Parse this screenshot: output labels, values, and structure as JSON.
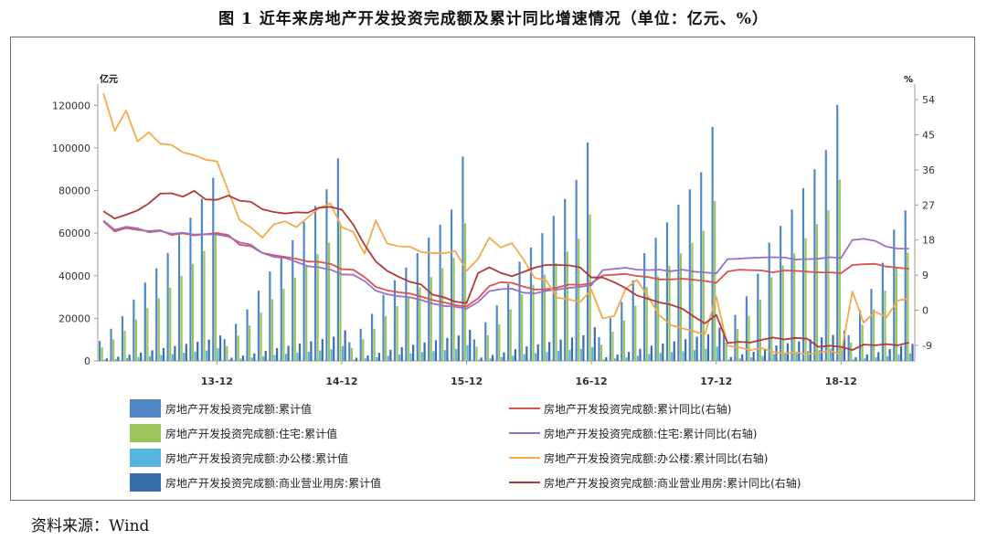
{
  "figure": {
    "title": "图 1  近年来房地产开发投资完成额及累计同比增速情况（单位：亿元、%）",
    "source": "资料来源：Wind"
  },
  "chart_data": {
    "type": "bar",
    "y_left": {
      "unit": "亿元",
      "min": 0,
      "max": 130000,
      "ticks": [
        0,
        20000,
        40000,
        60000,
        80000,
        100000,
        120000
      ]
    },
    "y_right": {
      "unit": "%",
      "min": -13,
      "max": 58,
      "ticks": [
        -9,
        0,
        9,
        18,
        27,
        36,
        45,
        54
      ]
    },
    "x_tick_labels": [
      {
        "label": "13-12",
        "index": 10
      },
      {
        "label": "14-12",
        "index": 21
      },
      {
        "label": "15-12",
        "index": 32
      },
      {
        "label": "16-12",
        "index": 43
      },
      {
        "label": "17-12",
        "index": 54
      },
      {
        "label": "18-12",
        "index": 65
      }
    ],
    "months": [
      "13-02",
      "13-03",
      "13-04",
      "13-05",
      "13-06",
      "13-07",
      "13-08",
      "13-09",
      "13-10",
      "13-11",
      "13-12",
      "14-02",
      "14-03",
      "14-04",
      "14-05",
      "14-06",
      "14-07",
      "14-08",
      "14-09",
      "14-10",
      "14-11",
      "14-12",
      "15-02",
      "15-03",
      "15-04",
      "15-05",
      "15-06",
      "15-07",
      "15-08",
      "15-09",
      "15-10",
      "15-11",
      "15-12",
      "16-02",
      "16-03",
      "16-04",
      "16-05",
      "16-06",
      "16-07",
      "16-08",
      "16-09",
      "16-10",
      "16-11",
      "16-12",
      "17-02",
      "17-03",
      "17-04",
      "17-05",
      "17-06",
      "17-07",
      "17-08",
      "17-09",
      "17-10",
      "17-11",
      "17-12",
      "18-02",
      "18-03",
      "18-04",
      "18-05",
      "18-06",
      "18-07",
      "18-08",
      "18-09",
      "18-10",
      "18-11",
      "18-12",
      "19-02",
      "19-03",
      "19-04",
      "19-05",
      "19-06",
      "19-07"
    ],
    "series": [
      {
        "name": "房地产开发投资完成额:累计值",
        "kind": "bar",
        "axis": "left",
        "color": "#4f86c6",
        "values": [
          9378,
          15097,
          20992,
          28863,
          36828,
          43522,
          50719,
          59110,
          67208,
          76148,
          86013,
          10250,
          17396,
          24249,
          33019,
          42019,
          49245,
          56656,
          65232,
          72795,
          80616,
          95036,
          8797,
          15096,
          22139,
          31039,
          37908,
          43854,
          50648,
          57912,
          63938,
          71023,
          95979,
          10132,
          18176,
          26095,
          36134,
          46597,
          53200,
          60006,
          68071,
          76061,
          85015,
          102581,
          11165,
          20092,
          27732,
          37773,
          50610,
          57823,
          65000,
          73420,
          80554,
          88566,
          109799,
          12265,
          21604,
          30332,
          40952,
          55531,
          63383,
          71066,
          81105,
          90000,
          99000,
          120264,
          12090,
          23803,
          33803,
          46075,
          61609,
          70656
        ]
      },
      {
        "name": "房地产开发投资完成额:住宅:累计值",
        "kind": "bar",
        "axis": "left",
        "color": "#9ac55a",
        "values": [
          6290,
          10155,
          14123,
          19446,
          24784,
          29452,
          34344,
          40050,
          45584,
          51612,
          58951,
          6964,
          11897,
          16646,
          22695,
          29021,
          33961,
          39112,
          44871,
          50075,
          55510,
          64352,
          5990,
          10208,
          15003,
          21086,
          25740,
          29831,
          34482,
          39392,
          43531,
          48335,
          64595,
          6700,
          12034,
          17318,
          24099,
          31286,
          35797,
          40529,
          45921,
          51424,
          57387,
          68704,
          7600,
          13693,
          18998,
          25881,
          34773,
          39744,
          44728,
          50498,
          55525,
          61049,
          75148,
          8528,
          14982,
          21191,
          28710,
          39238,
          44872,
          50435,
          57657,
          64186,
          70709,
          85192,
          8604,
          16985,
          24198,
          32993,
          44277,
          50895
        ]
      },
      {
        "name": "房地产开发投资完成额:办公楼:累计值",
        "kind": "bar",
        "axis": "left",
        "color": "#56b4e0",
        "values": [
          550,
          850,
          1300,
          1800,
          2300,
          2800,
          3200,
          3800,
          4300,
          4900,
          5999,
          700,
          1100,
          1600,
          2200,
          2800,
          3300,
          3800,
          4300,
          4900,
          5500,
          6995,
          700,
          1200,
          1800,
          2500,
          3100,
          3600,
          4100,
          4600,
          5100,
          5600,
          7450,
          700,
          1200,
          1800,
          2500,
          3200,
          3700,
          4200,
          4700,
          5200,
          5700,
          6533,
          700,
          1200,
          1700,
          2400,
          3200,
          3700,
          4100,
          4600,
          5100,
          5700,
          6761,
          700,
          1200,
          1700,
          2400,
          3200,
          3700,
          4100,
          4600,
          5100,
          5700,
          5996,
          650,
          1200,
          1700,
          2300,
          3100,
          3600
        ]
      },
      {
        "name": "房地产开发投资完成额:商业营业用房:累计值",
        "kind": "bar",
        "axis": "left",
        "color": "#3a6ca8",
        "values": [
          1200,
          2000,
          2900,
          3900,
          5000,
          6000,
          7000,
          8000,
          9000,
          10000,
          11945,
          1500,
          2500,
          3500,
          4700,
          6000,
          7100,
          8200,
          9200,
          10300,
          11400,
          14346,
          1500,
          2600,
          3800,
          5200,
          6500,
          7600,
          8700,
          9700,
          10800,
          11900,
          14607,
          1600,
          2800,
          4000,
          5500,
          6800,
          7800,
          8900,
          10000,
          11000,
          12100,
          15838,
          1700,
          3000,
          4200,
          5700,
          7200,
          8200,
          9200,
          10200,
          11300,
          12500,
          15640,
          1800,
          3100,
          4300,
          5800,
          7300,
          8300,
          9200,
          10100,
          11100,
          12200,
          14177,
          1700,
          3000,
          4100,
          5500,
          7000,
          8000
        ]
      },
      {
        "name": "房地产开发投资完成额:累计同比(右轴)",
        "kind": "line",
        "axis": "right",
        "color": "#d9534f",
        "values": [
          22.8,
          20.2,
          21.1,
          20.6,
          20.3,
          20.5,
          19.3,
          19.7,
          19.2,
          19.5,
          19.8,
          19.3,
          16.8,
          16.4,
          14.7,
          14.1,
          13.7,
          13.2,
          12.5,
          12.4,
          11.9,
          10.5,
          10.4,
          8.5,
          6.0,
          5.1,
          4.6,
          4.3,
          3.5,
          2.6,
          2.0,
          1.3,
          1.0,
          3.0,
          6.2,
          7.2,
          7.0,
          6.1,
          5.3,
          5.4,
          5.8,
          6.6,
          6.5,
          6.9,
          8.9,
          9.1,
          9.3,
          8.8,
          8.5,
          7.9,
          7.9,
          8.1,
          7.8,
          7.5,
          7.0,
          9.9,
          10.4,
          10.3,
          10.2,
          9.7,
          10.2,
          10.1,
          9.9,
          9.7,
          9.7,
          9.5,
          11.6,
          11.8,
          11.9,
          11.2,
          10.9,
          10.6
        ]
      },
      {
        "name": "房地产开发投资完成额:住宅:累计同比(右轴)",
        "kind": "line",
        "axis": "right",
        "color": "#9a6fc9",
        "values": [
          23.0,
          20.6,
          21.4,
          21.0,
          20.0,
          20.3,
          19.6,
          19.9,
          19.4,
          19.5,
          19.4,
          18.9,
          17.4,
          16.8,
          14.7,
          13.7,
          13.4,
          12.4,
          11.3,
          11.0,
          10.4,
          9.2,
          9.1,
          7.5,
          5.0,
          4.1,
          3.6,
          3.3,
          2.6,
          1.7,
          1.1,
          0.9,
          0.4,
          2.1,
          4.9,
          5.4,
          5.5,
          4.5,
          4.3,
          5.0,
          5.3,
          5.7,
          6.0,
          6.4,
          10.3,
          10.6,
          10.9,
          10.4,
          10.3,
          10.4,
          10.0,
          10.4,
          9.9,
          9.7,
          9.4,
          13.1,
          13.2,
          13.4,
          13.5,
          13.6,
          13.5,
          13.0,
          13.1,
          13.2,
          13.6,
          13.4,
          18.0,
          18.3,
          17.8,
          16.3,
          15.8,
          15.8
        ]
      },
      {
        "name": "房地产开发投资完成额:办公楼:累计同比(右轴)",
        "kind": "line",
        "axis": "right",
        "color": "#f5a94b",
        "values": [
          55.6,
          46.0,
          51.2,
          43.3,
          45.6,
          42.7,
          42.4,
          40.5,
          39.8,
          38.6,
          38.2,
          30.6,
          23.1,
          21.2,
          18.6,
          22.0,
          22.8,
          21.3,
          23.8,
          26.2,
          27.4,
          21.3,
          20.1,
          14.5,
          23.0,
          17.1,
          16.4,
          16.3,
          14.9,
          14.7,
          14.6,
          15.2,
          10.1,
          13.1,
          18.6,
          16.1,
          17.2,
          13.1,
          8.3,
          7.7,
          3.2,
          2.8,
          2.1,
          5.2,
          -2.1,
          -1.5,
          5.4,
          7.8,
          3.5,
          -1.3,
          -3.8,
          -4.6,
          -5.4,
          -6.2,
          3.5,
          -9.1,
          -9.5,
          -10.2,
          -9.7,
          -10.7,
          -11.1,
          -10.8,
          -11.3,
          -10.9,
          -10.4,
          -11.3,
          4.8,
          -3.2,
          -0.4,
          -1.8,
          2.5,
          3.0
        ]
      },
      {
        "name": "房地产开发投资完成额:商业营业用房:累计同比(右轴)",
        "kind": "line",
        "axis": "right",
        "color": "#b03a3a",
        "values": [
          25.4,
          23.5,
          24.5,
          25.6,
          27.4,
          29.9,
          30.0,
          29.1,
          30.6,
          28.4,
          28.3,
          29.4,
          28.1,
          27.8,
          25.9,
          25.2,
          24.8,
          25.1,
          25.0,
          26.3,
          26.5,
          25.8,
          22.0,
          16.8,
          12.5,
          10.1,
          8.6,
          7.3,
          6.6,
          4.0,
          3.3,
          2.2,
          1.8,
          9.5,
          11.0,
          9.6,
          8.7,
          9.8,
          10.9,
          11.6,
          11.6,
          11.5,
          11.0,
          8.4,
          8.4,
          7.2,
          5.7,
          3.8,
          2.9,
          2.0,
          1.4,
          0.4,
          -1.6,
          -3.4,
          -1.2,
          -8.4,
          -8.1,
          -8.3,
          -7.6,
          -7.0,
          -7.5,
          -7.1,
          -7.3,
          -9.4,
          -9.1,
          -9.4,
          -10.2,
          -8.8,
          -9.0,
          -8.7,
          -9.0,
          -8.3
        ]
      }
    ]
  }
}
